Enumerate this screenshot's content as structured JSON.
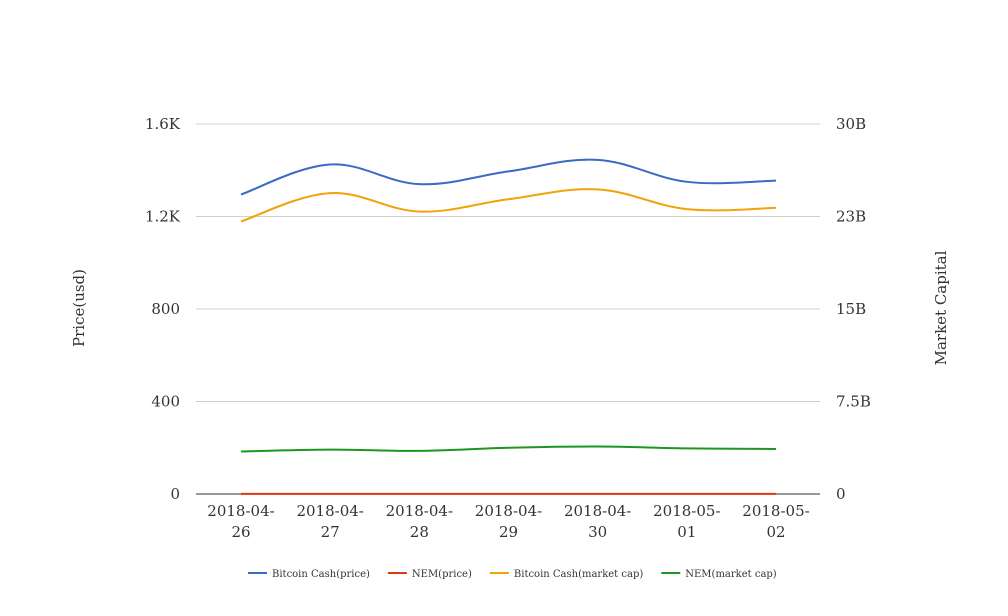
{
  "chart_data": {
    "type": "line",
    "categories": [
      [
        "2018-04-",
        "26"
      ],
      [
        "2018-04-",
        "27"
      ],
      [
        "2018-04-",
        "28"
      ],
      [
        "2018-04-",
        "29"
      ],
      [
        "2018-04-",
        "30"
      ],
      [
        "2018-05-",
        "01"
      ],
      [
        "2018-05-",
        "02"
      ]
    ],
    "y_left": {
      "label": "Price(usd)",
      "range": [
        0,
        1600
      ],
      "ticks": [
        0,
        400,
        800,
        1200,
        1600
      ],
      "tick_labels": [
        "0",
        "400",
        "800",
        "1.2K",
        "1.6K"
      ]
    },
    "y_right": {
      "label": "Market Capital",
      "range": [
        0,
        30000000000
      ],
      "ticks": [
        0,
        7500000000,
        15000000000,
        22500000000,
        30000000000
      ],
      "tick_labels": [
        "0",
        "7.5B",
        "15B",
        "23B",
        "30B"
      ]
    },
    "grid": true,
    "legend_position": "bottom",
    "series": [
      {
        "name": "Bitcoin Cash(price)",
        "axis": "left",
        "color": "#3a6bc4",
        "values": [
          1295,
          1425,
          1340,
          1395,
          1445,
          1350,
          1355
        ]
      },
      {
        "name": "NEM(price)",
        "axis": "left",
        "color": "#dc3912",
        "values": [
          0.4,
          0.41,
          0.4,
          0.42,
          0.42,
          0.41,
          0.41
        ]
      },
      {
        "name": "Bitcoin Cash(market cap)",
        "axis": "right",
        "color": "#f0a30a",
        "values": [
          22100000000,
          24400000000,
          22900000000,
          23900000000,
          24700000000,
          23100000000,
          23200000000
        ]
      },
      {
        "name": "NEM(market cap)",
        "axis": "right",
        "color": "#1e9622",
        "values": [
          3450000000,
          3600000000,
          3500000000,
          3750000000,
          3850000000,
          3700000000,
          3650000000
        ]
      }
    ]
  }
}
